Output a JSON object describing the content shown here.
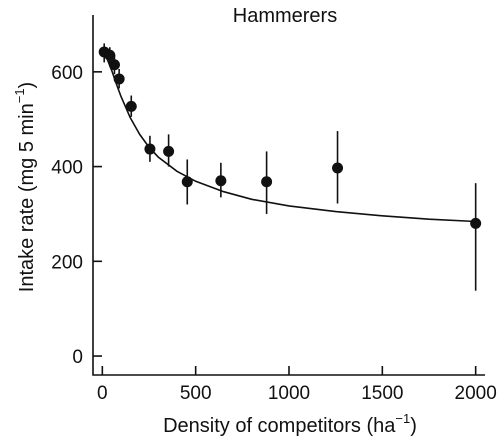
{
  "chart_data": {
    "type": "scatter",
    "title": "Hammerers",
    "xlabel": "Density of competitors (ha",
    "xlabel_sup": "−1",
    "xlabel_end": ")",
    "ylabel": "Intake rate (mg 5 min",
    "ylabel_sup": "−1",
    "ylabel_end": ")",
    "xlim": [
      -50,
      2050
    ],
    "ylim": [
      -40,
      720
    ],
    "x_ticks": [
      0,
      500,
      1000,
      1500,
      2000
    ],
    "y_ticks": [
      0,
      200,
      400,
      600
    ],
    "points": [
      {
        "x": 10,
        "y": 642,
        "err_low": 620,
        "err_high": 660
      },
      {
        "x": 40,
        "y": 635,
        "err_low": 618,
        "err_high": 652
      },
      {
        "x": 65,
        "y": 615,
        "err_low": 595,
        "err_high": 636
      },
      {
        "x": 90,
        "y": 585,
        "err_low": 565,
        "err_high": 606
      },
      {
        "x": 155,
        "y": 527,
        "err_low": 505,
        "err_high": 550
      },
      {
        "x": 255,
        "y": 437,
        "err_low": 410,
        "err_high": 465
      },
      {
        "x": 355,
        "y": 432,
        "err_low": 400,
        "err_high": 468
      },
      {
        "x": 455,
        "y": 368,
        "err_low": 320,
        "err_high": 415
      },
      {
        "x": 635,
        "y": 370,
        "err_low": 335,
        "err_high": 408
      },
      {
        "x": 880,
        "y": 368,
        "err_low": 300,
        "err_high": 432
      },
      {
        "x": 1260,
        "y": 397,
        "err_low": 322,
        "err_high": 475
      },
      {
        "x": 2000,
        "y": 280,
        "err_low": 138,
        "err_high": 365
      }
    ],
    "fit_curve": {
      "x": [
        0,
        25,
        50,
        75,
        100,
        150,
        200,
        250,
        300,
        400,
        500,
        650,
        800,
        1000,
        1250,
        1500,
        1750,
        2000
      ],
      "y": [
        648,
        628,
        603,
        575,
        548,
        503,
        468,
        441,
        420,
        390,
        369,
        347,
        331,
        317,
        305,
        296,
        289,
        284
      ]
    }
  }
}
